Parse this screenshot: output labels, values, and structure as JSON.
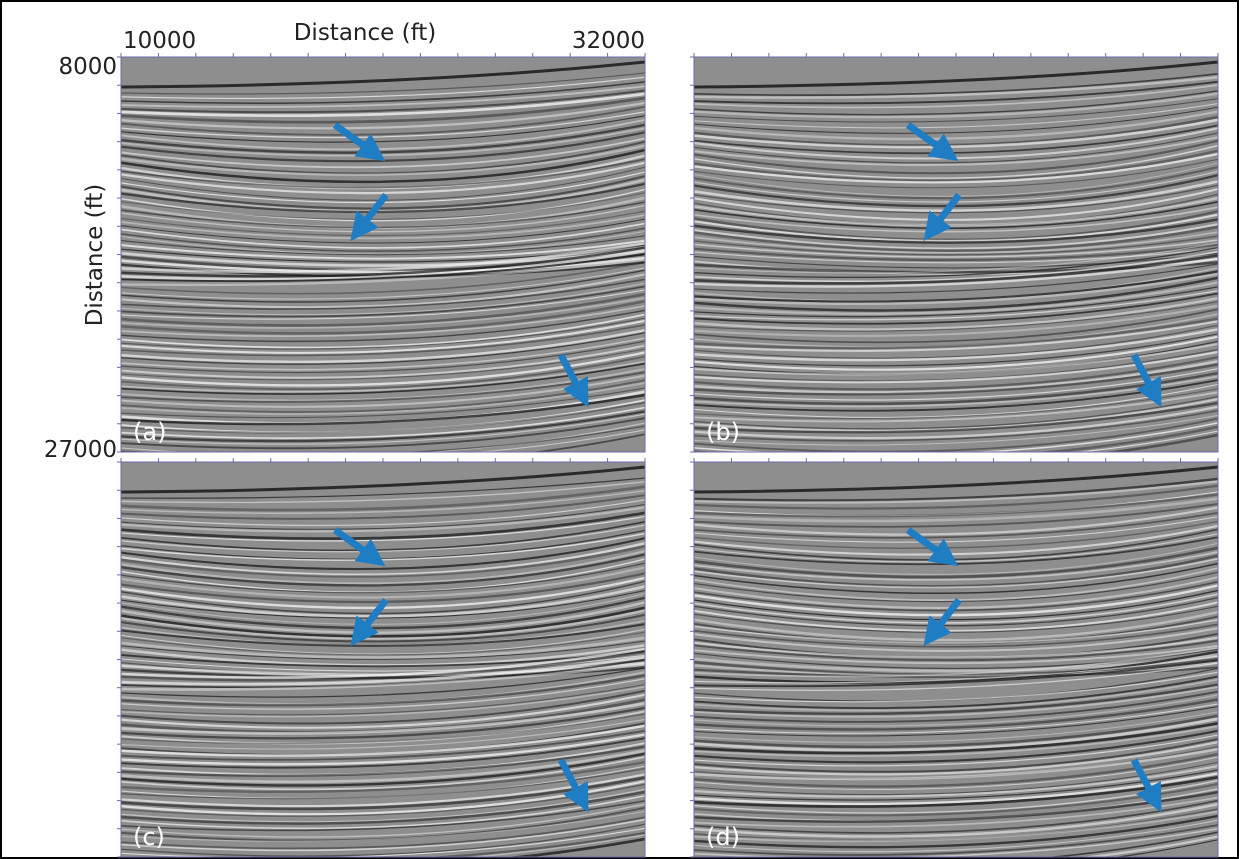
{
  "axes": {
    "x_label": "Distance (ft)",
    "x_start": 10000,
    "x_end": 32000,
    "y_label": "Distance (ft)",
    "y_start": 8000,
    "y_end": 27000
  },
  "panels": [
    {
      "label": "(a)"
    },
    {
      "label": "(b)"
    },
    {
      "label": "(c)"
    },
    {
      "label": "(d)"
    }
  ]
}
